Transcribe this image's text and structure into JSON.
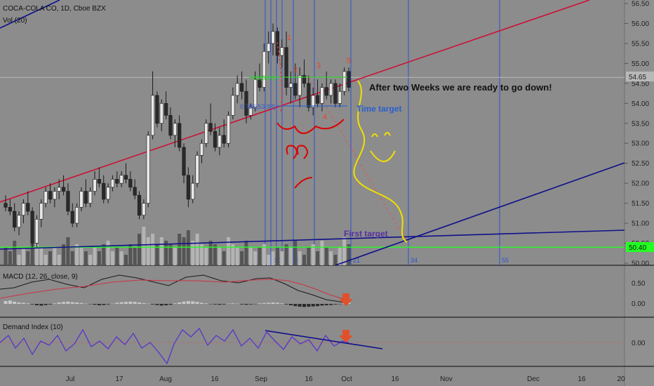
{
  "header": {
    "symbol_line": "COCA-COLA CO, 1D, Cboe BZX",
    "volume_label": "Vol (20)"
  },
  "chart_data": {
    "type": "candlestick",
    "price_axis": {
      "ticks": [
        56.5,
        56.0,
        55.5,
        55.0,
        54.5,
        54.0,
        53.5,
        53.0,
        52.5,
        52.0,
        51.5,
        51.0,
        50.5,
        50.0
      ],
      "range": [
        49.95,
        56.6
      ]
    },
    "x_axis": {
      "labels": [
        {
          "text": "Jul",
          "x": 100
        },
        {
          "text": "17",
          "x": 170
        },
        {
          "text": "Aug",
          "x": 236
        },
        {
          "text": "16",
          "x": 306
        },
        {
          "text": "Sep",
          "x": 372
        },
        {
          "text": "16",
          "x": 440
        },
        {
          "text": "Oct",
          "x": 494
        },
        {
          "text": "16",
          "x": 563
        },
        {
          "text": "Nov",
          "x": 636
        },
        {
          "text": "Dec",
          "x": 760
        },
        {
          "text": "16",
          "x": 829
        },
        {
          "text": "20",
          "x": 885
        }
      ]
    },
    "last_price": {
      "value": 54.65,
      "label": "54.65",
      "color": "#b8b8b8"
    },
    "support_level": {
      "value": 50.4,
      "label": "50.40",
      "color": "#22ff22"
    },
    "candles": [
      [
        51.5,
        51.7,
        51.3,
        51.4
      ],
      [
        51.4,
        51.6,
        51.2,
        51.3
      ],
      [
        51.3,
        51.5,
        50.8,
        50.9
      ],
      [
        50.9,
        51.3,
        50.7,
        51.2
      ],
      [
        51.2,
        51.6,
        51.0,
        51.5
      ],
      [
        51.5,
        51.8,
        51.2,
        51.3
      ],
      [
        51.3,
        51.4,
        50.4,
        50.5
      ],
      [
        50.5,
        51.2,
        50.4,
        51.1
      ],
      [
        51.1,
        51.6,
        50.9,
        51.5
      ],
      [
        51.5,
        51.9,
        51.4,
        51.8
      ],
      [
        51.8,
        52.0,
        51.5,
        51.6
      ],
      [
        51.6,
        51.9,
        51.4,
        51.8
      ],
      [
        51.8,
        52.1,
        51.6,
        51.9
      ],
      [
        51.9,
        52.2,
        51.7,
        51.8
      ],
      [
        51.8,
        52.0,
        51.2,
        51.3
      ],
      [
        51.3,
        51.5,
        50.9,
        51.0
      ],
      [
        51.0,
        51.5,
        50.9,
        51.4
      ],
      [
        51.4,
        51.9,
        51.3,
        51.8
      ],
      [
        51.8,
        52.1,
        51.4,
        51.5
      ],
      [
        51.5,
        51.9,
        51.4,
        51.8
      ],
      [
        51.8,
        52.3,
        51.7,
        52.1
      ],
      [
        52.1,
        52.4,
        51.9,
        52.0
      ],
      [
        52.0,
        52.2,
        51.5,
        51.6
      ],
      [
        51.6,
        52.0,
        51.5,
        51.9
      ],
      [
        51.9,
        52.2,
        51.8,
        52.1
      ],
      [
        52.1,
        52.3,
        51.9,
        52.0
      ],
      [
        52.0,
        52.3,
        51.9,
        52.2
      ],
      [
        52.2,
        52.5,
        52.0,
        52.1
      ],
      [
        52.1,
        52.3,
        51.8,
        51.9
      ],
      [
        51.9,
        52.1,
        51.6,
        51.7
      ],
      [
        51.7,
        51.8,
        51.1,
        51.2
      ],
      [
        51.2,
        51.6,
        51.1,
        51.5
      ],
      [
        51.5,
        53.3,
        51.4,
        53.2
      ],
      [
        53.2,
        54.8,
        53.1,
        54.2
      ],
      [
        54.2,
        54.3,
        53.4,
        53.5
      ],
      [
        53.5,
        54.1,
        53.3,
        54.0
      ],
      [
        54.0,
        54.3,
        53.6,
        53.7
      ],
      [
        53.7,
        53.9,
        53.1,
        53.2
      ],
      [
        53.2,
        53.6,
        52.9,
        53.5
      ],
      [
        53.5,
        53.7,
        52.8,
        52.9
      ],
      [
        52.9,
        53.0,
        52.0,
        52.2
      ],
      [
        52.2,
        52.4,
        51.4,
        51.6
      ],
      [
        51.6,
        52.2,
        51.5,
        52.0
      ],
      [
        52.0,
        52.8,
        51.9,
        52.7
      ],
      [
        52.7,
        53.1,
        52.5,
        53.0
      ],
      [
        53.0,
        53.6,
        52.9,
        53.5
      ],
      [
        53.5,
        54.0,
        53.2,
        53.3
      ],
      [
        53.3,
        53.5,
        52.8,
        52.9
      ],
      [
        52.9,
        53.4,
        52.7,
        53.2
      ],
      [
        53.2,
        53.6,
        52.9,
        53.0
      ],
      [
        53.0,
        53.8,
        52.9,
        53.7
      ],
      [
        53.7,
        54.4,
        53.6,
        54.2
      ],
      [
        54.2,
        54.7,
        54.0,
        54.5
      ],
      [
        54.5,
        54.8,
        54.1,
        54.3
      ],
      [
        54.3,
        54.6,
        53.5,
        53.7
      ],
      [
        53.7,
        54.0,
        53.6,
        53.9
      ],
      [
        53.9,
        54.8,
        53.8,
        54.6
      ],
      [
        54.6,
        55.0,
        54.3,
        54.4
      ],
      [
        54.4,
        55.5,
        54.3,
        55.3
      ],
      [
        55.3,
        55.8,
        55.0,
        55.5
      ],
      [
        55.5,
        56.0,
        55.2,
        55.8
      ],
      [
        55.8,
        55.9,
        55.0,
        55.2
      ],
      [
        55.2,
        55.6,
        54.9,
        55.4
      ],
      [
        55.4,
        55.8,
        54.2,
        54.4
      ],
      [
        54.4,
        54.8,
        54.0,
        54.5
      ],
      [
        54.5,
        55.0,
        54.1,
        54.2
      ],
      [
        54.2,
        54.9,
        53.9,
        54.7
      ],
      [
        54.7,
        55.1,
        54.4,
        54.5
      ],
      [
        54.5,
        54.7,
        53.8,
        53.9
      ],
      [
        53.9,
        54.4,
        53.7,
        54.2
      ],
      [
        54.2,
        54.6,
        53.9,
        54.0
      ],
      [
        54.0,
        54.5,
        53.8,
        54.4
      ],
      [
        54.4,
        54.8,
        54.1,
        54.2
      ],
      [
        54.2,
        54.6,
        54.0,
        54.5
      ],
      [
        54.5,
        54.6,
        53.9,
        54.0
      ],
      [
        54.0,
        54.5,
        53.9,
        54.3
      ],
      [
        54.3,
        54.9,
        54.2,
        54.8
      ],
      [
        54.8,
        54.9,
        54.3,
        54.4
      ]
    ],
    "volume": [
      5,
      4,
      7,
      3,
      5,
      4,
      9,
      6,
      5,
      3,
      4,
      5,
      3,
      6,
      8,
      4,
      6,
      5,
      4,
      3,
      5,
      4,
      6,
      7,
      4,
      5,
      4,
      3,
      6,
      5,
      9,
      11,
      8,
      9,
      6,
      8,
      7,
      6,
      5,
      9,
      8,
      10,
      7,
      9,
      6,
      5,
      7,
      6,
      5,
      4,
      8,
      6,
      5,
      4,
      7,
      5,
      4,
      5,
      6,
      3,
      4,
      5,
      4,
      6,
      5,
      7,
      4,
      3,
      5,
      6,
      4,
      7,
      5,
      4,
      3,
      5,
      8,
      6
    ],
    "macd": {
      "title": "MACD (12, 26, close, 9)",
      "ticks": [
        0.5,
        0.0
      ],
      "macd_line": [
        [
          0,
          412
        ],
        [
          20,
          410
        ],
        [
          45,
          402
        ],
        [
          70,
          398
        ],
        [
          95,
          405
        ],
        [
          120,
          410
        ],
        [
          145,
          398
        ],
        [
          170,
          392
        ],
        [
          195,
          396
        ],
        [
          220,
          402
        ],
        [
          240,
          407
        ],
        [
          265,
          395
        ],
        [
          290,
          392
        ],
        [
          315,
          400
        ],
        [
          340,
          403
        ],
        [
          365,
          397
        ],
        [
          385,
          396
        ],
        [
          405,
          404
        ],
        [
          425,
          414
        ],
        [
          445,
          420
        ],
        [
          465,
          427
        ],
        [
          485,
          430
        ],
        [
          497,
          432
        ]
      ],
      "signal_line": [
        [
          0,
          425
        ],
        [
          40,
          418
        ],
        [
          80,
          412
        ],
        [
          120,
          408
        ],
        [
          160,
          402
        ],
        [
          200,
          399
        ],
        [
          240,
          400
        ],
        [
          280,
          400
        ],
        [
          320,
          402
        ],
        [
          360,
          399
        ],
        [
          390,
          398
        ],
        [
          410,
          400
        ],
        [
          430,
          405
        ],
        [
          450,
          412
        ],
        [
          470,
          420
        ],
        [
          490,
          426
        ],
        [
          497,
          428
        ]
      ],
      "histogram": [
        0.1,
        0.12,
        0.08,
        0.05,
        0.04,
        0.02,
        -0.02,
        -0.05,
        -0.06,
        -0.04,
        -0.02,
        0.02,
        0.05,
        0.07,
        0.08,
        0.06,
        0.05,
        0.03,
        0.01,
        -0.01,
        -0.03,
        -0.05,
        -0.04,
        -0.02,
        0.01,
        0.04,
        0.06,
        0.07,
        0.08,
        0.07,
        0.05,
        0.03,
        0.01,
        -0.02,
        -0.04,
        -0.06,
        -0.05,
        -0.03,
        0.02,
        0.05,
        0.08,
        0.1,
        0.09,
        0.07,
        0.04,
        0.02,
        -0.01,
        -0.02,
        -0.03,
        -0.02,
        0.01,
        0.02,
        0.01,
        -0.02,
        -0.03,
        -0.02,
        -0.01,
        0.02,
        0.03,
        0.04,
        0.05,
        0.04,
        0.02,
        -0.02,
        -0.05,
        -0.08,
        -0.1,
        -0.11,
        -0.1,
        -0.09,
        -0.08,
        -0.06,
        -0.05,
        -0.04,
        -0.02,
        -0.01,
        0.02,
        0.04
      ]
    },
    "demand_index": {
      "title": "Demand Index (10)",
      "ticks": [
        0.0
      ]
    }
  },
  "annotations": {
    "main_note": "After two Weeks we are ready to go down!",
    "time_target": "Time target",
    "first_target": "First target",
    "fib_upper": "0.5(54.6)",
    "fib_lower": "0.786(53.98)",
    "fib_nums": [
      "1",
      "2",
      "3",
      "4",
      "5"
    ],
    "fib_time_labels": [
      "1",
      "2",
      "3",
      "5",
      "8",
      "13",
      "21",
      "34",
      "55"
    ]
  }
}
